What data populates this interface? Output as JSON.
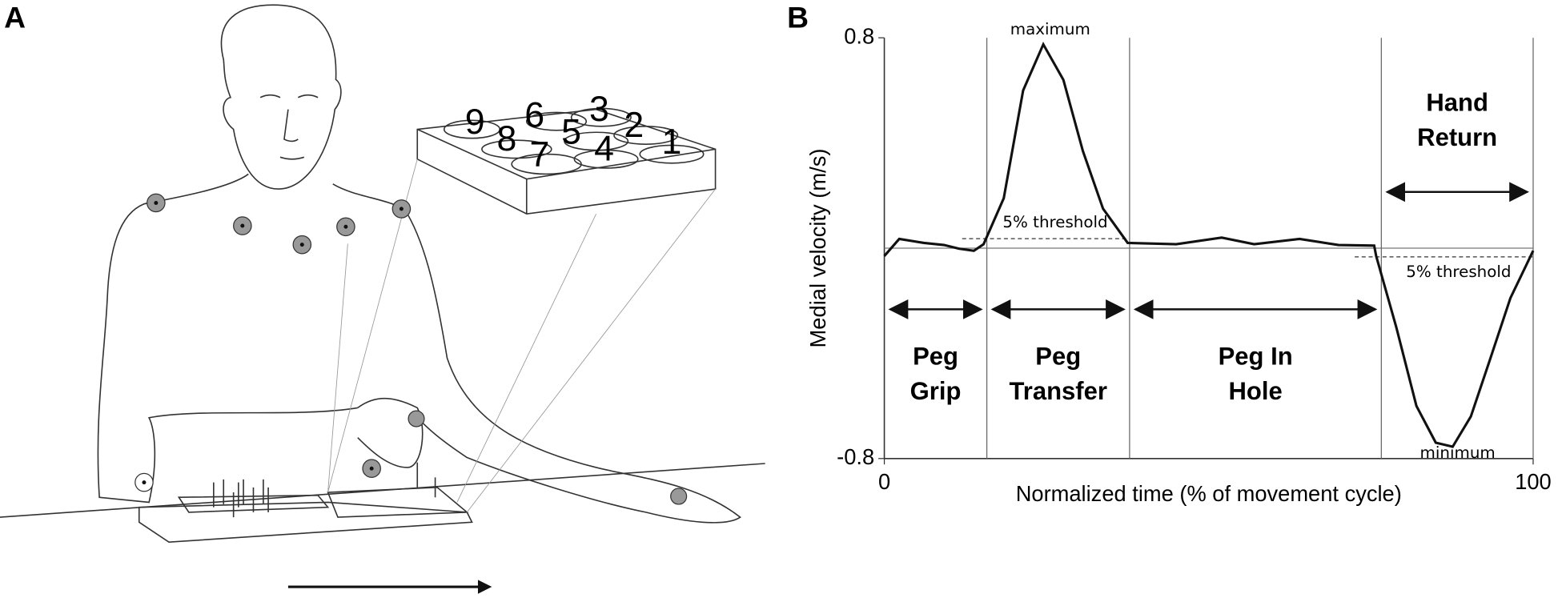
{
  "panel_a": {
    "label": "A",
    "board_numbers": [
      "9",
      "8",
      "6",
      "7",
      "5",
      "3",
      "4",
      "2",
      "1"
    ]
  },
  "chart_data": {
    "type": "line",
    "panel_label": "B",
    "y_label": "Medial velocity (m/s)",
    "x_label": "Normalized time (% of movement cycle)",
    "xlim": [
      0,
      100
    ],
    "ylim": [
      -0.8,
      0.8
    ],
    "xticks": [
      0,
      100
    ],
    "yticks": [
      -0.8,
      0.8
    ],
    "series": [
      {
        "color": "#111111",
        "x": [
          0,
          2.3,
          6.1,
          9.2,
          11.5,
          13.8,
          15.3,
          18.4,
          21.4,
          24.5,
          27.6,
          30.6,
          33.7,
          37.5,
          45,
          52,
          57,
          64,
          70,
          75.5,
          75.8,
          78.9,
          82,
          85,
          87.6,
          90.4,
          93.4,
          96.5,
          100
        ],
        "values": [
          -0.03,
          0.035,
          0.02,
          0.012,
          -0.002,
          -0.01,
          0.015,
          0.19,
          0.6,
          0.775,
          0.64,
          0.37,
          0.15,
          0.02,
          0.015,
          0.04,
          0.015,
          0.035,
          0.012,
          0.01,
          -0.03,
          -0.3,
          -0.6,
          -0.74,
          -0.755,
          -0.64,
          -0.42,
          -0.19,
          -0.01
        ]
      }
    ],
    "thresholds": [
      {
        "label": "5% threshold",
        "value": 0.036
      },
      {
        "label": "5% threshold",
        "value": -0.033
      }
    ],
    "annotations": {
      "maximum": "maximum",
      "minimum": "minimum"
    },
    "phase_boundaries": [
      15.8,
      37.8,
      76.6
    ],
    "phases": [
      {
        "lines": [
          "Peg",
          "Grip"
        ]
      },
      {
        "lines": [
          "Peg",
          "Transfer"
        ]
      },
      {
        "lines": [
          "Peg In",
          "Hole"
        ]
      },
      {
        "lines": [
          "Hand",
          "Return"
        ]
      }
    ]
  }
}
